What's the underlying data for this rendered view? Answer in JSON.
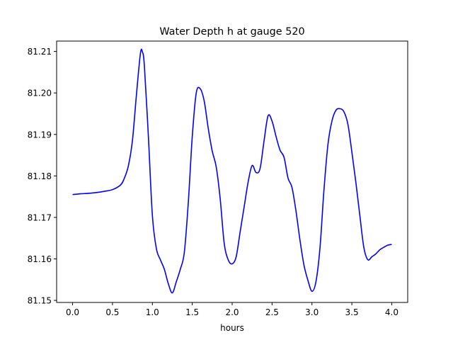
{
  "chart_data": {
    "type": "line",
    "title": "Water Depth h at gauge 520",
    "xlabel": "hours",
    "ylabel": "",
    "xlim": [
      -0.2,
      4.2
    ],
    "ylim": [
      81.1495,
      81.2125
    ],
    "grid": false,
    "x_ticks": [
      0.0,
      0.5,
      1.0,
      1.5,
      2.0,
      2.5,
      3.0,
      3.5,
      4.0
    ],
    "x_tick_labels": [
      "0.0",
      "0.5",
      "1.0",
      "1.5",
      "2.0",
      "2.5",
      "3.0",
      "3.5",
      "4.0"
    ],
    "y_ticks": [
      81.15,
      81.16,
      81.17,
      81.18,
      81.19,
      81.2,
      81.21
    ],
    "y_tick_labels": [
      "81.15",
      "81.16",
      "81.17",
      "81.18",
      "81.19",
      "81.20",
      "81.21"
    ],
    "series": [
      {
        "color": "#0000ff",
        "x": [
          0.0,
          0.1,
          0.2,
          0.3,
          0.4,
          0.5,
          0.6,
          0.65,
          0.7,
          0.75,
          0.8,
          0.85,
          0.875,
          0.9,
          0.95,
          1.0,
          1.05,
          1.1,
          1.15,
          1.2,
          1.25,
          1.3,
          1.35,
          1.4,
          1.45,
          1.5,
          1.55,
          1.6,
          1.65,
          1.7,
          1.75,
          1.8,
          1.85,
          1.9,
          1.95,
          2.0,
          2.05,
          2.1,
          2.15,
          2.2,
          2.25,
          2.3,
          2.35,
          2.4,
          2.45,
          2.5,
          2.55,
          2.6,
          2.65,
          2.7,
          2.75,
          2.8,
          2.85,
          2.9,
          2.95,
          3.0,
          3.05,
          3.1,
          3.15,
          3.2,
          3.25,
          3.3,
          3.35,
          3.4,
          3.45,
          3.5,
          3.55,
          3.6,
          3.65,
          3.7,
          3.75,
          3.8,
          3.85,
          3.9,
          3.95,
          4.0
        ],
        "y": [
          81.1755,
          81.1757,
          81.1758,
          81.176,
          81.1763,
          81.1767,
          81.1778,
          81.1795,
          81.1825,
          81.1885,
          81.1995,
          81.2095,
          81.2099,
          81.2065,
          81.1895,
          81.1705,
          81.1625,
          81.1598,
          81.1575,
          81.154,
          81.1518,
          81.1545,
          81.1575,
          81.1615,
          81.1735,
          81.1895,
          81.2,
          81.201,
          81.198,
          81.1915,
          81.186,
          81.1822,
          81.1745,
          81.1638,
          81.1598,
          81.1588,
          81.1605,
          81.1665,
          81.1725,
          81.1785,
          81.1825,
          81.1808,
          81.1818,
          81.1885,
          81.1945,
          81.1932,
          81.1895,
          81.1862,
          81.1845,
          81.1795,
          81.1772,
          81.1715,
          81.1645,
          81.1585,
          81.1548,
          81.1522,
          81.1545,
          81.1625,
          81.1765,
          81.1875,
          81.1932,
          81.1958,
          81.1962,
          81.1955,
          81.1925,
          81.1858,
          81.1785,
          81.1705,
          81.1628,
          81.1598,
          81.1605,
          81.1612,
          81.1622,
          81.1628,
          81.1633,
          81.1635
        ]
      }
    ]
  }
}
